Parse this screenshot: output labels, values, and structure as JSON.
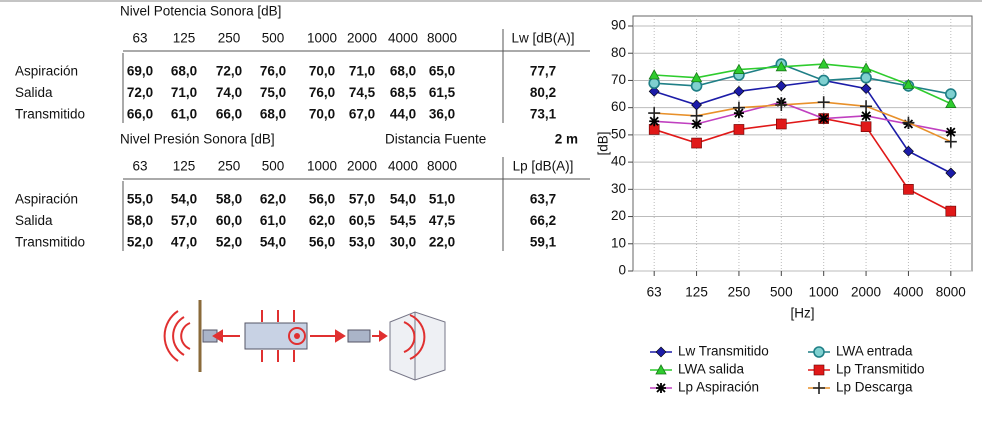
{
  "tables": [
    {
      "title": "Nivel Potencia Sonora [dB]",
      "header": [
        "63",
        "125",
        "250",
        "500",
        "1000",
        "2000",
        "4000",
        "8000",
        "Lw [dB(A)]"
      ],
      "rows": [
        [
          "Aspiración",
          "69,0",
          "68,0",
          "72,0",
          "76,0",
          "70,0",
          "71,0",
          "68,0",
          "65,0",
          "77,7"
        ],
        [
          "Salida",
          "72,0",
          "71,0",
          "74,0",
          "75,0",
          "76,0",
          "74,5",
          "68,5",
          "61,5",
          "80,2"
        ],
        [
          "Transmitido",
          "66,0",
          "61,0",
          "66,0",
          "68,0",
          "70,0",
          "67,0",
          "44,0",
          "36,0",
          "73,1"
        ]
      ]
    },
    {
      "title": "Nivel Presión Sonora [dB]",
      "distance_label": "Distancia Fuente",
      "distance": "2 m",
      "header": [
        "63",
        "125",
        "250",
        "500",
        "1000",
        "2000",
        "4000",
        "8000",
        "Lp [dB(A)]"
      ],
      "rows": [
        [
          "Aspiración",
          "55,0",
          "54,0",
          "58,0",
          "62,0",
          "56,0",
          "57,0",
          "54,0",
          "51,0",
          "63,7"
        ],
        [
          "Salida",
          "58,0",
          "57,0",
          "60,0",
          "61,0",
          "62,0",
          "60,5",
          "54,5",
          "47,5",
          "66,2"
        ],
        [
          "Transmitido",
          "52,0",
          "47,0",
          "52,0",
          "54,0",
          "56,0",
          "53,0",
          "30,0",
          "22,0",
          "59,1"
        ]
      ]
    }
  ],
  "chart_data": {
    "type": "line",
    "x_label": "[Hz]",
    "y_label": "[dB]",
    "categories": [
      "63",
      "125",
      "250",
      "500",
      "1000",
      "2000",
      "4000",
      "8000"
    ],
    "ylim": [
      0,
      90
    ],
    "yticks": [
      0,
      10,
      20,
      30,
      40,
      50,
      60,
      70,
      80,
      90
    ],
    "grid": true,
    "legend": "bottom",
    "series": [
      {
        "name": "Lw Transmitido",
        "color": "#1c1ca8",
        "marker": "diamond",
        "values": [
          66,
          61,
          66,
          68,
          70,
          67,
          44,
          36
        ]
      },
      {
        "name": "LWA entrada",
        "color": "#1f7f86",
        "marker": "circle",
        "values": [
          69,
          68,
          72,
          76,
          70,
          71,
          68,
          65
        ]
      },
      {
        "name": "LWA salida",
        "color": "#2ecc2e",
        "marker": "triangle",
        "values": [
          72,
          71,
          74,
          75,
          76,
          74.5,
          68.5,
          61.5
        ]
      },
      {
        "name": "Lp Transmitido",
        "color": "#e01818",
        "marker": "square",
        "values": [
          52,
          47,
          52,
          54,
          56,
          53,
          30,
          22
        ]
      },
      {
        "name": "Lp Aspiración",
        "color": "#c040c0",
        "marker": "asterisk",
        "values": [
          55,
          54,
          58,
          62,
          56,
          57,
          54,
          51
        ]
      },
      {
        "name": "Lp Descarga",
        "color": "#e8902a",
        "marker": "plus",
        "values": [
          58,
          57,
          60,
          61,
          62,
          60.5,
          54.5,
          47.5
        ]
      }
    ]
  }
}
